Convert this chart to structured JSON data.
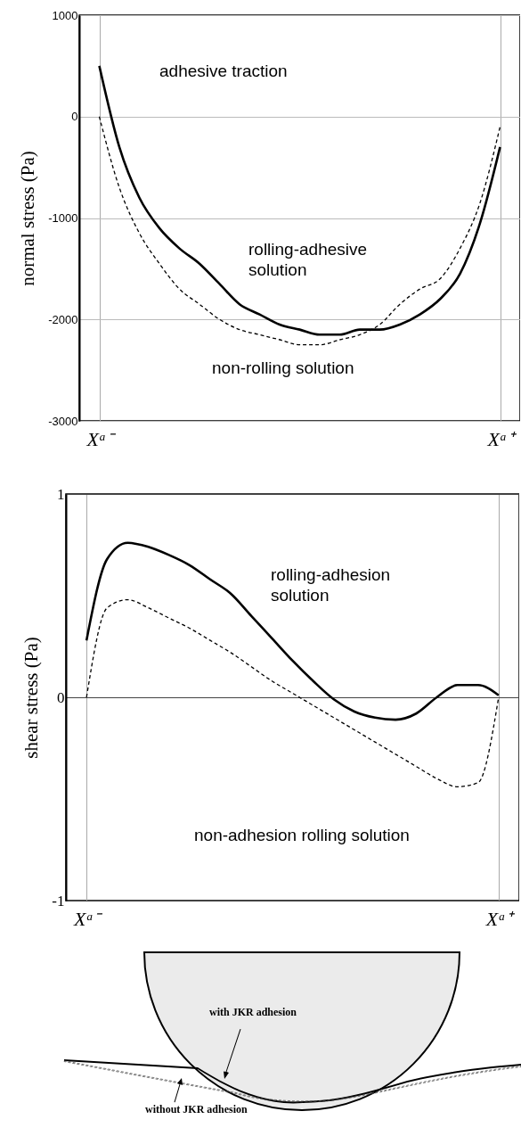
{
  "chart_data": [
    {
      "type": "line",
      "ylabel": "normal stress (Pa)",
      "ylim": [
        -3000,
        1000
      ],
      "yticks": [
        -3000,
        -2000,
        -1000,
        0,
        1000
      ],
      "grid": true,
      "categories": [
        "Xᵃ⁻",
        null,
        null,
        null,
        null,
        null,
        null,
        null,
        null,
        null,
        null,
        null,
        null,
        null,
        null,
        null,
        null,
        null,
        null,
        null,
        "Xᵃ⁺"
      ],
      "series": [
        {
          "color": "#000000",
          "line_style": "solid",
          "values": [
            500,
            -300,
            -800,
            -1100,
            -1300,
            -1450,
            -1650,
            -1850,
            -1950,
            -2050,
            -2100,
            -2150,
            -2150,
            -2100,
            -2100,
            -2050,
            -1950,
            -1800,
            -1550,
            -1050,
            -300
          ]
        },
        {
          "color": "#000000",
          "line_style": "dashed",
          "values": [
            0,
            -700,
            -1150,
            -1450,
            -1700,
            -1850,
            -2000,
            -2100,
            -2150,
            -2200,
            -2250,
            -2250,
            -2200,
            -2150,
            -2050,
            -1850,
            -1700,
            -1600,
            -1300,
            -850,
            -100
          ]
        }
      ],
      "annotations": [
        "adhesive traction",
        "rolling-adhesive\nsolution",
        "non-rolling solution"
      ]
    },
    {
      "type": "line",
      "ylabel": "shear stress (Pa)",
      "ylim": [
        -1,
        1
      ],
      "yticks": [
        -1,
        0,
        1
      ],
      "grid": true,
      "categories": [
        "Xᵃ⁻",
        null,
        null,
        null,
        null,
        null,
        null,
        null,
        null,
        null,
        null,
        null,
        null,
        null,
        null,
        null,
        null,
        null,
        null,
        null,
        "Xᵃ⁺"
      ],
      "series": [
        {
          "color": "#000000",
          "line_style": "solid",
          "values": [
            0.28,
            0.68,
            0.76,
            0.74,
            0.7,
            0.65,
            0.58,
            0.51,
            0.4,
            0.29,
            0.18,
            0.08,
            -0.01,
            -0.07,
            -0.1,
            -0.11,
            -0.08,
            0,
            0.06,
            0.06,
            0.01
          ]
        },
        {
          "color": "#000000",
          "line_style": "dashed",
          "values": [
            0,
            0.44,
            0.48,
            0.44,
            0.39,
            0.34,
            0.28,
            0.22,
            0.15,
            0.08,
            0.02,
            -0.04,
            -0.1,
            -0.16,
            -0.22,
            -0.28,
            -0.34,
            -0.4,
            -0.44,
            -0.42,
            0
          ]
        }
      ],
      "annotations": [
        "rolling-adhesion\nsolution",
        "non-adhesion rolling solution"
      ]
    },
    {
      "type": "other",
      "annotations": [
        "with JKR adhesion",
        "without JKR adhesion"
      ]
    }
  ]
}
